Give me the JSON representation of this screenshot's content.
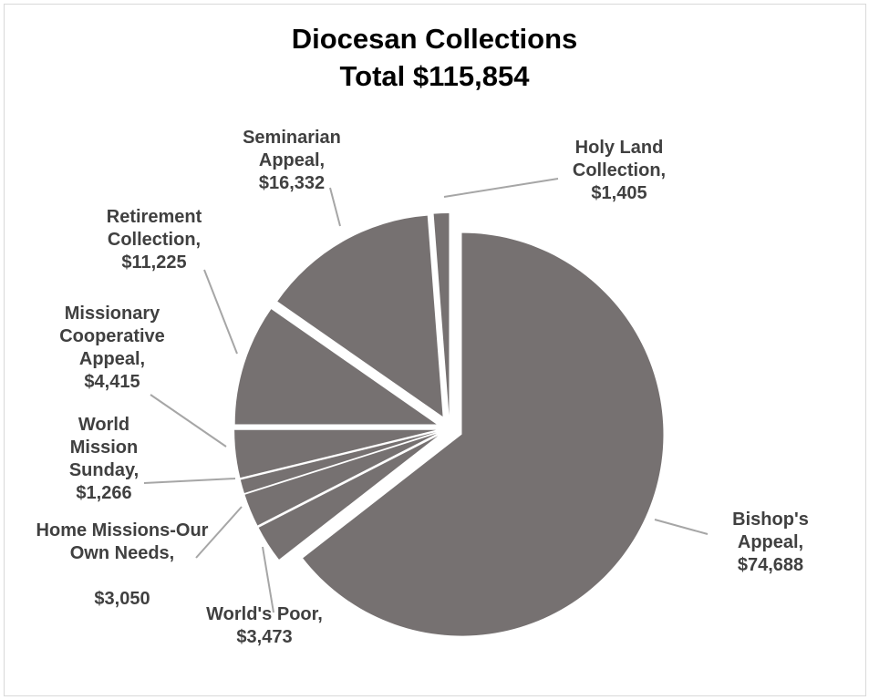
{
  "chart_data": {
    "type": "pie",
    "title": "Diocesan Collections",
    "subtitle": "Total $115,854",
    "slice_color": "#767171",
    "slices": [
      {
        "label": "Bishop's Appeal,",
        "value_text": "$74,688",
        "value": 74688
      },
      {
        "label": "World's Poor,",
        "value_text": "$3,473",
        "value": 3473
      },
      {
        "label": "Home Missions-Our Own Needs,",
        "value_text": "$3,050",
        "value": 3050
      },
      {
        "label": "World Mission Sunday,",
        "value_text": "$1,266",
        "value": 1266
      },
      {
        "label": "Missionary Cooperative Appeal,",
        "value_text": "$4,415",
        "value": 4415
      },
      {
        "label": "Retirement Collection,",
        "value_text": "$11,225",
        "value": 11225
      },
      {
        "label": "Seminarian Appeal,",
        "value_text": "$16,332",
        "value": 16332
      },
      {
        "label": "Holy Land Collection,",
        "value_text": "$1,405",
        "value": 1405
      }
    ]
  }
}
